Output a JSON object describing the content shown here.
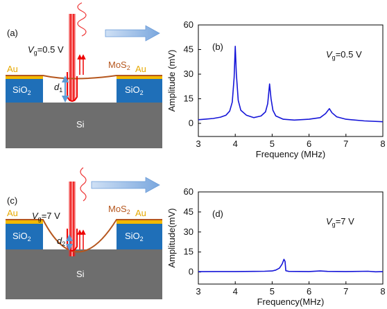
{
  "panels": {
    "a": {
      "label": "(a)",
      "gate": [
        "V",
        "g",
        "=0.5 V"
      ],
      "au_left": "Au",
      "mos2": [
        "MoS",
        "2"
      ],
      "au_right": "Au",
      "sio2_left": [
        "SiO",
        "2"
      ],
      "sio2_right": [
        "SiO",
        "2"
      ],
      "gap": [
        "d",
        "1"
      ],
      "substrate": "Si"
    },
    "c": {
      "label": "(c)",
      "gate": [
        "V",
        "g",
        "=7 V"
      ],
      "au_left": "Au",
      "mos2": [
        "MoS",
        "2"
      ],
      "au_right": "Au",
      "sio2_left": [
        "SiO",
        "2"
      ],
      "sio2_right": [
        "SiO",
        "2"
      ],
      "gap": [
        "d",
        "2"
      ],
      "substrate": "Si"
    }
  },
  "chart_data": [
    {
      "type": "line",
      "title": "(b)",
      "annotation": [
        "V",
        "g",
        "=0.5 V"
      ],
      "xlabel": "Frequency (MHz)",
      "ylabel": "Amplitude (mV)",
      "color": "#1414d8",
      "x": [
        3.0,
        3.2,
        3.4,
        3.6,
        3.75,
        3.85,
        3.92,
        3.97,
        4.0,
        4.03,
        4.08,
        4.15,
        4.3,
        4.5,
        4.7,
        4.82,
        4.88,
        4.93,
        4.97,
        5.02,
        5.1,
        5.3,
        5.6,
        6.0,
        6.3,
        6.45,
        6.55,
        6.62,
        6.75,
        7.0,
        7.5,
        8.0
      ],
      "values": [
        2.2,
        2.6,
        3.0,
        3.8,
        5,
        7.5,
        13,
        28,
        47,
        30,
        14,
        8,
        5,
        3.5,
        4.5,
        7,
        12,
        24,
        15,
        8,
        4.5,
        2.5,
        2,
        2.5,
        3.5,
        6,
        9,
        6.5,
        4,
        2.5,
        1.5,
        1.0
      ],
      "xlim": [
        3,
        8
      ],
      "xticks": [
        3,
        4,
        5,
        6,
        7,
        8
      ],
      "ylim": [
        -8,
        60
      ],
      "yticks": [
        0,
        15,
        30,
        45,
        60
      ]
    },
    {
      "type": "line",
      "title": "(d)",
      "annotation": [
        "V",
        "g",
        "=7 V"
      ],
      "xlabel": "Frequency(MHz)",
      "ylabel": "Amplitude(mV)",
      "color": "#1414d8",
      "x": [
        3.0,
        3.5,
        4.0,
        4.5,
        4.8,
        5.0,
        5.1,
        5.2,
        5.27,
        5.32,
        5.35,
        5.37,
        5.45,
        6.0,
        6.3,
        6.5,
        7.0,
        7.6,
        7.8,
        8.0
      ],
      "values": [
        0.3,
        0.4,
        0.4,
        0.5,
        0.6,
        0.8,
        1.5,
        3,
        6,
        9.5,
        8,
        1,
        0.5,
        0.4,
        0.8,
        0.5,
        0.4,
        0.6,
        0.2,
        0.3
      ],
      "xlim": [
        3,
        8
      ],
      "xticks": [
        3,
        4,
        5,
        6,
        7,
        8
      ],
      "ylim": [
        -9,
        60
      ],
      "yticks": [
        0,
        15,
        30,
        45,
        60
      ]
    }
  ]
}
